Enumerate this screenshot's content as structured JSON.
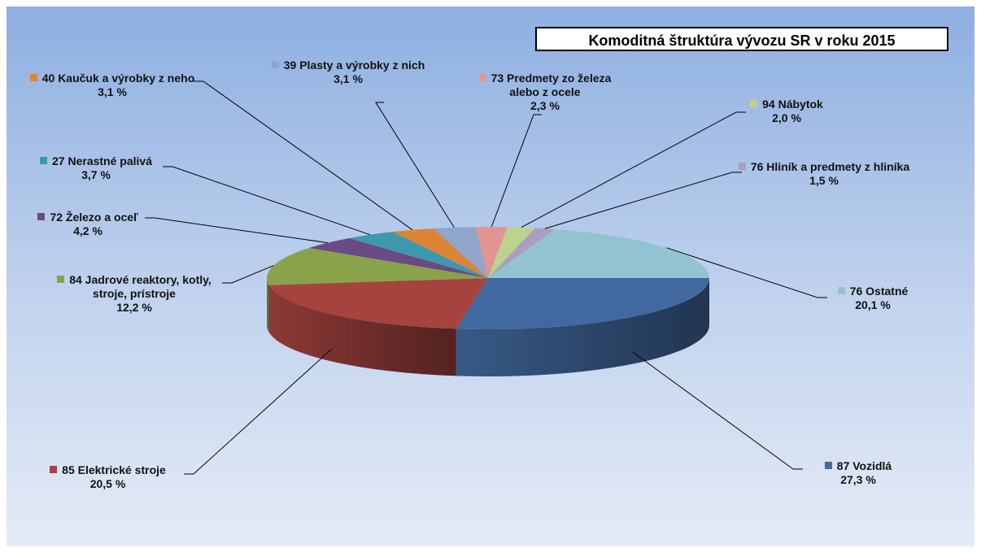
{
  "chart_data": {
    "type": "pie3d",
    "title": "Komoditná štruktúra vývozu SR v roku 2015",
    "categories": [
      "87  Vozidlá",
      "85  Elektrické stroje",
      "84  Jadrové reaktory, kotly, stroje, prístroje",
      "72  Železo a oceľ",
      "27  Nerastné palivá",
      "40  Kaučuk a výrobky z neho",
      "39  Plasty a výrobky z nich",
      "73  Predmety zo železa alebo z ocele",
      "94  Nábytok",
      "76  Hliník a predmety z hliníka",
      "76 Ostatné"
    ],
    "values": [
      27.3,
      20.5,
      12.2,
      4.2,
      3.7,
      3.1,
      3.1,
      2.3,
      2.0,
      1.5,
      20.1
    ],
    "value_labels": [
      "27,3 %",
      "20,5 %",
      "12,2 %",
      "4,2 %",
      "3,7 %",
      "3,1 %",
      "3,1 %",
      "2,3 %",
      "2,0 %",
      "1,5 %",
      "20,1 %"
    ],
    "colors": [
      "#42699f",
      "#a6433f",
      "#8aa34a",
      "#6a4b85",
      "#3e98ad",
      "#dc8436",
      "#8fa5c9",
      "#e29590",
      "#bcd28e",
      "#ab9dc4",
      "#92c3d1"
    ]
  }
}
